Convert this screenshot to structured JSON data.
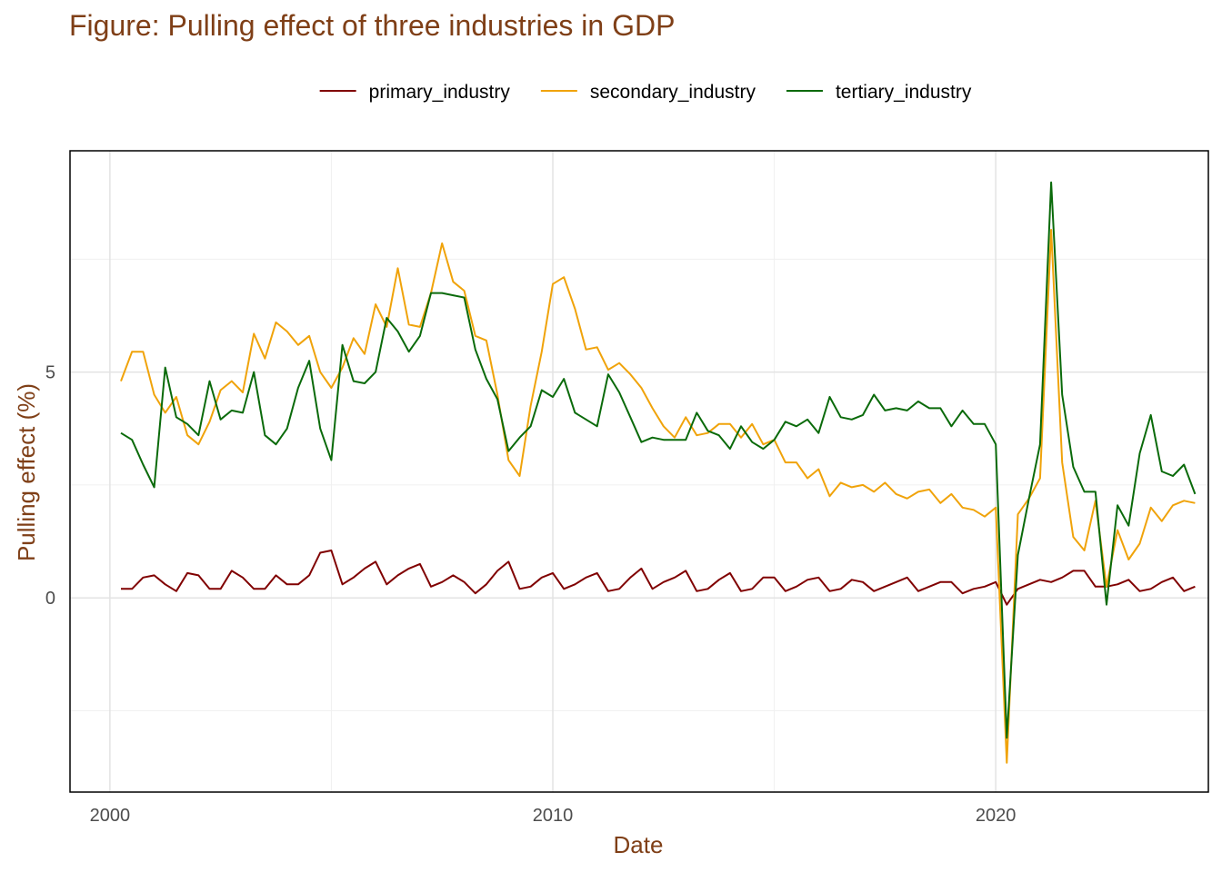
{
  "chart_data": {
    "type": "line",
    "title": "Figure: Pulling effect of three industries in GDP",
    "xlabel": "Date",
    "ylabel": "Pulling effect (%)",
    "xlim": [
      1999.1,
      2024.8
    ],
    "ylim": [
      -4.3,
      9.9
    ],
    "x_ticks": [
      2000,
      2010,
      2020
    ],
    "y_ticks": [
      0,
      5
    ],
    "grid": true,
    "legend_position": "top",
    "x": [
      2000.25,
      2000.5,
      2000.75,
      2001,
      2001.25,
      2001.5,
      2001.75,
      2002,
      2002.25,
      2002.5,
      2002.75,
      2003,
      2003.25,
      2003.5,
      2003.75,
      2004,
      2004.25,
      2004.5,
      2004.75,
      2005,
      2005.25,
      2005.5,
      2005.75,
      2006,
      2006.25,
      2006.5,
      2006.75,
      2007,
      2007.25,
      2007.5,
      2007.75,
      2008,
      2008.25,
      2008.5,
      2008.75,
      2009,
      2009.25,
      2009.5,
      2009.75,
      2010,
      2010.25,
      2010.5,
      2010.75,
      2011,
      2011.25,
      2011.5,
      2011.75,
      2012,
      2012.25,
      2012.5,
      2012.75,
      2013,
      2013.25,
      2013.5,
      2013.75,
      2014,
      2014.25,
      2014.5,
      2014.75,
      2015,
      2015.25,
      2015.5,
      2015.75,
      2016,
      2016.25,
      2016.5,
      2016.75,
      2017,
      2017.25,
      2017.5,
      2017.75,
      2018,
      2018.25,
      2018.5,
      2018.75,
      2019,
      2019.25,
      2019.5,
      2019.75,
      2020,
      2020.25,
      2020.5,
      2020.75,
      2021,
      2021.25,
      2021.5,
      2021.75,
      2022,
      2022.25,
      2022.5,
      2022.75,
      2023,
      2023.25,
      2023.5,
      2023.75,
      2024,
      2024.25,
      2024.5
    ],
    "series": [
      {
        "name": "primary_industry",
        "color": "#800000",
        "values": [
          0.2,
          0.2,
          0.45,
          0.5,
          0.3,
          0.15,
          0.55,
          0.5,
          0.2,
          0.2,
          0.6,
          0.45,
          0.2,
          0.2,
          0.5,
          0.3,
          0.3,
          0.5,
          1.0,
          1.05,
          0.3,
          0.45,
          0.65,
          0.8,
          0.3,
          0.5,
          0.65,
          0.75,
          0.25,
          0.35,
          0.5,
          0.35,
          0.1,
          0.3,
          0.6,
          0.8,
          0.2,
          0.25,
          0.45,
          0.55,
          0.2,
          0.3,
          0.45,
          0.55,
          0.15,
          0.2,
          0.45,
          0.65,
          0.2,
          0.35,
          0.45,
          0.6,
          0.15,
          0.2,
          0.4,
          0.55,
          0.15,
          0.2,
          0.45,
          0.45,
          0.15,
          0.25,
          0.4,
          0.45,
          0.15,
          0.2,
          0.4,
          0.35,
          0.15,
          0.25,
          0.35,
          0.45,
          0.15,
          0.25,
          0.35,
          0.35,
          0.1,
          0.2,
          0.25,
          0.35,
          -0.15,
          0.2,
          0.3,
          0.4,
          0.35,
          0.45,
          0.6,
          0.6,
          0.25,
          0.25,
          0.3,
          0.4,
          0.15,
          0.2,
          0.35,
          0.45,
          0.15,
          0.25
        ]
      },
      {
        "name": "secondary_industry",
        "color": "#f0a30a",
        "values": [
          4.8,
          5.45,
          5.45,
          4.5,
          4.1,
          4.45,
          3.6,
          3.4,
          3.9,
          4.6,
          4.8,
          4.55,
          5.85,
          5.3,
          6.1,
          5.9,
          5.6,
          5.8,
          5.0,
          4.65,
          5.1,
          5.75,
          5.4,
          6.5,
          6.0,
          7.3,
          6.05,
          6.0,
          6.75,
          7.85,
          7.0,
          6.8,
          5.8,
          5.7,
          4.5,
          3.05,
          2.7,
          4.25,
          5.45,
          6.95,
          7.1,
          6.4,
          5.5,
          5.55,
          5.05,
          5.2,
          4.95,
          4.65,
          4.2,
          3.8,
          3.55,
          4.0,
          3.6,
          3.65,
          3.85,
          3.85,
          3.55,
          3.85,
          3.4,
          3.5,
          3.0,
          3.0,
          2.65,
          2.85,
          2.25,
          2.55,
          2.45,
          2.5,
          2.35,
          2.55,
          2.3,
          2.2,
          2.35,
          2.4,
          2.1,
          2.3,
          2.0,
          1.95,
          1.8,
          2.0,
          -3.65,
          1.85,
          2.2,
          2.65,
          8.15,
          3.0,
          1.35,
          1.05,
          2.15,
          0.25,
          1.5,
          0.85,
          1.2,
          2.0,
          1.7,
          2.05,
          2.15,
          2.1
        ]
      },
      {
        "name": "tertiary_industry",
        "color": "#0a6a0a",
        "values": [
          3.65,
          3.5,
          2.95,
          2.45,
          5.1,
          4.0,
          3.85,
          3.6,
          4.8,
          3.95,
          4.15,
          4.1,
          5.0,
          3.6,
          3.4,
          3.75,
          4.65,
          5.25,
          3.75,
          3.05,
          5.6,
          4.8,
          4.75,
          5.0,
          6.2,
          5.9,
          5.45,
          5.8,
          6.75,
          6.75,
          6.7,
          6.65,
          5.5,
          4.85,
          4.4,
          3.25,
          3.55,
          3.8,
          4.6,
          4.45,
          4.85,
          4.1,
          3.95,
          3.8,
          4.95,
          4.55,
          4.0,
          3.45,
          3.55,
          3.5,
          3.5,
          3.5,
          4.1,
          3.7,
          3.6,
          3.3,
          3.8,
          3.45,
          3.3,
          3.5,
          3.9,
          3.8,
          3.95,
          3.65,
          4.45,
          4.0,
          3.95,
          4.05,
          4.5,
          4.15,
          4.2,
          4.15,
          4.35,
          4.2,
          4.2,
          3.8,
          4.15,
          3.85,
          3.85,
          3.4,
          -3.1,
          0.95,
          2.2,
          3.4,
          9.2,
          4.5,
          2.9,
          2.35,
          2.35,
          -0.15,
          2.05,
          1.6,
          3.2,
          4.05,
          2.8,
          2.7,
          2.95,
          2.3
        ]
      }
    ]
  }
}
